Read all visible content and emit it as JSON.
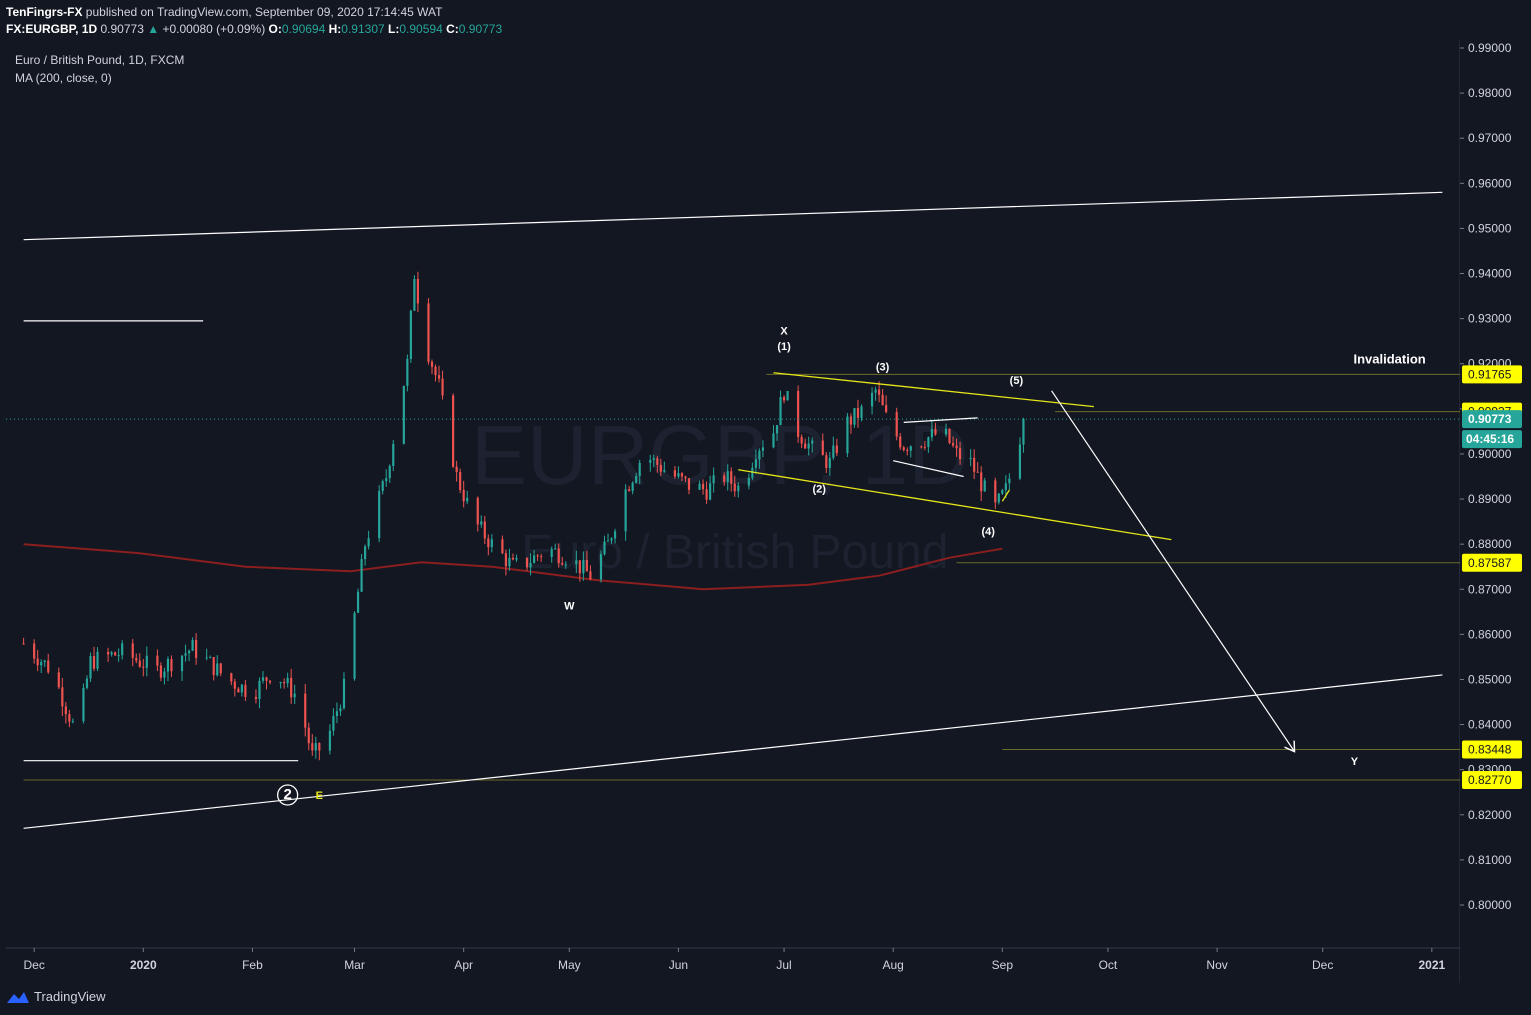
{
  "header": {
    "author": "TenFingrs-FX",
    "published": "published on TradingView.com, September 09, 2020 17:14:45 WAT",
    "symbol": "FX:EURGBP, 1D",
    "last": "0.90773",
    "change": "+0.00080 (+0.09%)",
    "o_label": "O:",
    "o": "0.90694",
    "h_label": "H:",
    "h": "0.91307",
    "l_label": "L:",
    "l": "0.90594",
    "c_label": "C:",
    "c": "0.90773"
  },
  "legend": {
    "instrument": "Euro / British Pound, 1D, FXCM",
    "indicator": "MA (200, close, 0)"
  },
  "watermark": {
    "ticker": "EURGBP, 1D",
    "name": "Euro / British Pound"
  },
  "footer": {
    "brand": "TradingView"
  },
  "colors": {
    "background": "#131722",
    "up": "#26a69a",
    "down": "#ef5350",
    "ma": "#8b1e1e",
    "channel": "#e6e619",
    "line": "#ffffff",
    "level": "#6b6b2a"
  },
  "chart_data": {
    "type": "candlestick",
    "title": "Euro / British Pound, 1D, FXCM",
    "ylim": [
      0.79,
      0.992
    ],
    "x_ticks": [
      "Dec",
      "2020",
      "Feb",
      "Mar",
      "Apr",
      "May",
      "Jun",
      "Jul",
      "Aug",
      "Sep",
      "Oct",
      "Nov",
      "Dec",
      "2021"
    ],
    "x_tick_days": [
      0,
      31,
      62,
      91,
      122,
      152,
      183,
      213,
      244,
      275,
      305,
      336,
      366,
      397
    ],
    "y_ticks": [
      "0.99000",
      "0.98000",
      "0.97000",
      "0.96000",
      "0.95000",
      "0.94000",
      "0.93000",
      "0.92000",
      "0.91000",
      "0.90000",
      "0.89000",
      "0.88000",
      "0.87000",
      "0.86000",
      "0.85000",
      "0.84000",
      "0.83000",
      "0.82000",
      "0.81000",
      "0.80000"
    ],
    "y_tick_values": [
      0.99,
      0.98,
      0.97,
      0.96,
      0.95,
      0.94,
      0.93,
      0.92,
      0.91,
      0.9,
      0.89,
      0.88,
      0.87,
      0.86,
      0.85,
      0.84,
      0.83,
      0.82,
      0.81,
      0.8
    ],
    "price_path": [
      [
        -3,
        0.858
      ],
      [
        5,
        0.852
      ],
      [
        12,
        0.838
      ],
      [
        16,
        0.854
      ],
      [
        25,
        0.856
      ],
      [
        35,
        0.852
      ],
      [
        45,
        0.857
      ],
      [
        55,
        0.85
      ],
      [
        62,
        0.847
      ],
      [
        68,
        0.852
      ],
      [
        75,
        0.846
      ],
      [
        79,
        0.833
      ],
      [
        83,
        0.836
      ],
      [
        88,
        0.848
      ],
      [
        94,
        0.88
      ],
      [
        100,
        0.895
      ],
      [
        106,
        0.92
      ],
      [
        108,
        0.94
      ],
      [
        111,
        0.925
      ],
      [
        115,
        0.915
      ],
      [
        120,
        0.895
      ],
      [
        125,
        0.885
      ],
      [
        130,
        0.88
      ],
      [
        136,
        0.875
      ],
      [
        140,
        0.876
      ],
      [
        146,
        0.879
      ],
      [
        152,
        0.877
      ],
      [
        158,
        0.873
      ],
      [
        163,
        0.88
      ],
      [
        168,
        0.892
      ],
      [
        173,
        0.9
      ],
      [
        180,
        0.896
      ],
      [
        186,
        0.893
      ],
      [
        191,
        0.892
      ],
      [
        196,
        0.895
      ],
      [
        201,
        0.892
      ],
      [
        205,
        0.901
      ],
      [
        210,
        0.905
      ],
      [
        213,
        0.914
      ],
      [
        217,
        0.905
      ],
      [
        222,
        0.9
      ],
      [
        226,
        0.898
      ],
      [
        231,
        0.907
      ],
      [
        236,
        0.91
      ],
      [
        239,
        0.914
      ],
      [
        243,
        0.906
      ],
      [
        247,
        0.902
      ],
      [
        252,
        0.903
      ],
      [
        258,
        0.905
      ],
      [
        262,
        0.9
      ],
      [
        266,
        0.898
      ],
      [
        270,
        0.892
      ],
      [
        273,
        0.888
      ],
      [
        276,
        0.892
      ],
      [
        279,
        0.9
      ],
      [
        281,
        0.9077
      ]
    ],
    "last_price": 0.90773,
    "countdown": "04:45:16",
    "ma200": [
      [
        -3,
        0.88
      ],
      [
        30,
        0.878
      ],
      [
        60,
        0.875
      ],
      [
        90,
        0.874
      ],
      [
        110,
        0.876
      ],
      [
        130,
        0.875
      ],
      [
        160,
        0.872
      ],
      [
        190,
        0.87
      ],
      [
        220,
        0.871
      ],
      [
        240,
        0.873
      ],
      [
        260,
        0.877
      ],
      [
        275,
        0.879
      ]
    ],
    "price_levels": [
      {
        "label": "0.91765",
        "value": 0.91765
      },
      {
        "label": "0.90937",
        "value": 0.90937
      },
      {
        "label": "0.87587",
        "value": 0.87587
      },
      {
        "label": "0.83448",
        "value": 0.83448
      },
      {
        "label": "0.82770",
        "value": 0.8277
      }
    ],
    "annotations": [
      {
        "text": "Invalidation",
        "day": 385,
        "price": 0.92
      },
      {
        "text": "X",
        "day": 213,
        "price": 0.9265
      },
      {
        "text": "(1)",
        "day": 213,
        "price": 0.923
      },
      {
        "text": "(2)",
        "day": 223,
        "price": 0.8915
      },
      {
        "text": "(3)",
        "day": 241,
        "price": 0.9185
      },
      {
        "text": "(4)",
        "day": 271,
        "price": 0.882
      },
      {
        "text": "(5)",
        "day": 279,
        "price": 0.9155
      },
      {
        "text": "W",
        "day": 152,
        "price": 0.8655
      },
      {
        "text": "Y",
        "day": 375,
        "price": 0.831
      },
      {
        "text": "2",
        "day": 72,
        "price": 0.8235
      },
      {
        "text": "E",
        "day": 81,
        "price": 0.8235
      }
    ],
    "trendlines": [
      {
        "style": "white",
        "from": [
          -3,
          0.9475
        ],
        "to": [
          400,
          0.958
        ]
      },
      {
        "style": "white",
        "from": [
          -3,
          0.817
        ],
        "to": [
          400,
          0.851
        ]
      },
      {
        "style": "white",
        "from": [
          -3,
          0.9295
        ],
        "to": [
          48,
          0.9295
        ]
      },
      {
        "style": "white",
        "from": [
          -3,
          0.832
        ],
        "to": [
          75,
          0.832
        ]
      },
      {
        "style": "yellow",
        "from": [
          210,
          0.918
        ],
        "to": [
          301,
          0.9105
        ]
      },
      {
        "style": "yellow",
        "from": [
          200,
          0.8965
        ],
        "to": [
          323,
          0.881
        ]
      },
      {
        "style": "white",
        "from": [
          247,
          0.907
        ],
        "to": [
          268,
          0.908
        ]
      },
      {
        "style": "white",
        "from": [
          244,
          0.8985
        ],
        "to": [
          264,
          0.895
        ]
      },
      {
        "style": "yellow",
        "from": [
          275,
          0.8895
        ],
        "to": [
          277,
          0.892
        ]
      },
      {
        "style": "arrow",
        "from": [
          289,
          0.914
        ],
        "to": [
          358,
          0.834
        ]
      }
    ]
  }
}
